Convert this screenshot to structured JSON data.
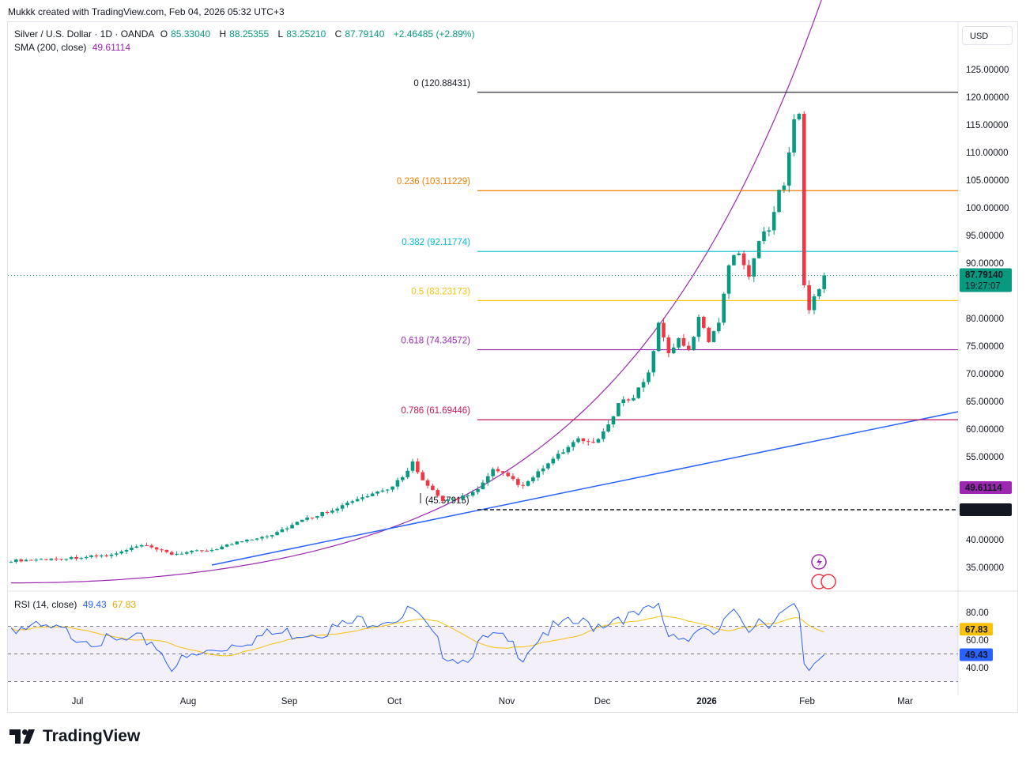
{
  "header": {
    "attribution": "Mukkk created with TradingView.com, Feb 04, 2026 05:32 UTC+3"
  },
  "legend": {
    "symbol": "Silver / U.S. Dollar · 1D · OANDA",
    "open_label": "O",
    "open": "85.33040",
    "high_label": "H",
    "high": "88.25355",
    "low_label": "L",
    "low": "83.25210",
    "close_label": "C",
    "close": "87.79140",
    "change": "+2.46485 (+2.89%)",
    "sma_label": "SMA (200, close)",
    "sma_value": "49.61114"
  },
  "currency_button": "USD",
  "rsi_legend": {
    "label": "RSI (14, close)",
    "value": "49.43",
    "ma_value": "67.83"
  },
  "brand": {
    "name": "TradingView"
  },
  "colors": {
    "up": "#089981",
    "down": "#f23645",
    "fib0": "#131722",
    "fib236": "#f57c00",
    "fib382": "#00bcd4",
    "fib50": "#f9c00c",
    "fib618": "#9c27b0",
    "fib786": "#c2185b",
    "trend": "#2962ff",
    "sma": "#9c27b0",
    "rsi": "#2962ff",
    "rsi_ma": "#f9c00c"
  },
  "chart_data": {
    "type": "candlestick",
    "title": "Silver / U.S. Dollar · 1D · OANDA",
    "y_axis_labels": [
      "125.00000",
      "120.00000",
      "115.00000",
      "110.00000",
      "105.00000",
      "100.00000",
      "95.00000",
      "90.00000",
      "80.00000",
      "75.00000",
      "70.00000",
      "65.00000",
      "60.00000",
      "55.00000",
      "40.00000",
      "35.00000"
    ],
    "x_axis_labels": [
      "Jul",
      "Aug",
      "Sep",
      "Oct",
      "Nov",
      "Dec",
      "2026",
      "Feb",
      "Mar"
    ],
    "last_price": "87.79140",
    "countdown": "19:27:07",
    "sma_price_label": "49.61114",
    "horizontal_line_label": "45.72498",
    "low_marker_label": "(45.57915)",
    "fibonacci": [
      {
        "label": "0 (120.88431)",
        "level": "0",
        "price": 120.88431,
        "color_key": "fib0"
      },
      {
        "label": "0.236 (103.11229)",
        "level": "0.236",
        "price": 103.11229,
        "color_key": "fib236"
      },
      {
        "label": "0.382 (92.11774)",
        "level": "0.382",
        "price": 92.11774,
        "color_key": "fib382"
      },
      {
        "label": "0.5 (83.23173)",
        "level": "0.5",
        "price": 83.23173,
        "color_key": "fib50"
      },
      {
        "label": "0.618 (74.34572)",
        "level": "0.618",
        "price": 74.34572,
        "color_key": "fib618"
      },
      {
        "label": "0.786 (61.69446)",
        "level": "0.786",
        "price": 61.69446,
        "color_key": "fib786"
      }
    ],
    "rsi_axis_labels": [
      "80.00",
      "60.00",
      "40.00"
    ],
    "rsi_value_label": "49.43",
    "rsi_ma_label": "67.83",
    "close_keypoints": [
      [
        0,
        36.2
      ],
      [
        10,
        36.6
      ],
      [
        20,
        37.2
      ],
      [
        26,
        39.0
      ],
      [
        32,
        37.4
      ],
      [
        40,
        38.2
      ],
      [
        46,
        39.8
      ],
      [
        52,
        41.0
      ],
      [
        58,
        43.5
      ],
      [
        64,
        45.5
      ],
      [
        70,
        47.6
      ],
      [
        75,
        49.0
      ],
      [
        78,
        51.5
      ],
      [
        80,
        54.0
      ],
      [
        82,
        50.5
      ],
      [
        86,
        47.0
      ],
      [
        90,
        47.8
      ],
      [
        93,
        49.0
      ],
      [
        96,
        52.5
      ],
      [
        99,
        51.5
      ],
      [
        102,
        49.5
      ],
      [
        106,
        53.0
      ],
      [
        110,
        56.0
      ],
      [
        113,
        58.0
      ],
      [
        116,
        57.5
      ],
      [
        119,
        60.5
      ],
      [
        121,
        64.5
      ],
      [
        124,
        66.0
      ],
      [
        127,
        70.0
      ],
      [
        129,
        79.0
      ],
      [
        131,
        74.0
      ],
      [
        133,
        76.0
      ],
      [
        135,
        74.0
      ],
      [
        137,
        80.0
      ],
      [
        139,
        76.0
      ],
      [
        141,
        79.5
      ],
      [
        143,
        90.0
      ],
      [
        145,
        92.0
      ],
      [
        147,
        88.0
      ],
      [
        149,
        94.0
      ],
      [
        151,
        96.5
      ],
      [
        153,
        103.0
      ],
      [
        154,
        104.0
      ],
      [
        155,
        110.0
      ],
      [
        156,
        116.0
      ],
      [
        157,
        117.0
      ],
      [
        158,
        86.0
      ],
      [
        159,
        81.5
      ],
      [
        160,
        84.0
      ],
      [
        161,
        85.3
      ],
      [
        162,
        87.8
      ]
    ],
    "rsi_keypoints": [
      [
        0,
        70
      ],
      [
        10,
        66
      ],
      [
        20,
        58
      ],
      [
        28,
        60
      ],
      [
        32,
        42
      ],
      [
        40,
        52
      ],
      [
        46,
        60
      ],
      [
        52,
        64
      ],
      [
        58,
        66
      ],
      [
        64,
        68
      ],
      [
        70,
        74
      ],
      [
        75,
        76
      ],
      [
        78,
        77
      ],
      [
        80,
        82
      ],
      [
        82,
        72
      ],
      [
        86,
        52
      ],
      [
        90,
        46
      ],
      [
        93,
        56
      ],
      [
        96,
        62
      ],
      [
        99,
        58
      ],
      [
        102,
        50
      ],
      [
        106,
        66
      ],
      [
        110,
        70
      ],
      [
        113,
        72
      ],
      [
        116,
        71
      ],
      [
        119,
        74
      ],
      [
        121,
        78
      ],
      [
        124,
        76
      ],
      [
        127,
        80
      ],
      [
        129,
        84
      ],
      [
        131,
        64
      ],
      [
        133,
        66
      ],
      [
        135,
        60
      ],
      [
        137,
        70
      ],
      [
        139,
        62
      ],
      [
        141,
        66
      ],
      [
        143,
        76
      ],
      [
        145,
        78
      ],
      [
        147,
        70
      ],
      [
        149,
        76
      ],
      [
        151,
        74
      ],
      [
        153,
        78
      ],
      [
        154,
        79
      ],
      [
        155,
        80
      ],
      [
        156,
        82
      ],
      [
        157,
        80
      ],
      [
        158,
        43
      ],
      [
        159,
        38
      ],
      [
        160,
        43
      ],
      [
        161,
        46
      ],
      [
        162,
        49.43
      ]
    ]
  }
}
